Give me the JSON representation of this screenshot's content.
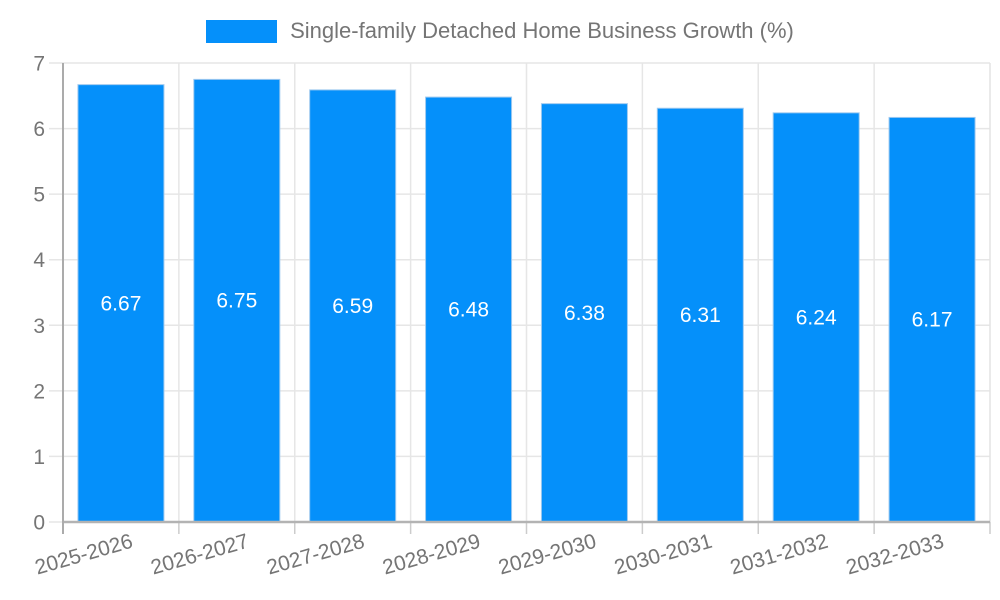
{
  "chart_data": {
    "type": "bar",
    "title": "",
    "legend": {
      "label": "Single-family Detached Home Business Growth (%)",
      "position": "top-center"
    },
    "categories": [
      "2025-2026",
      "2026-2027",
      "2027-2028",
      "2028-2029",
      "2029-2030",
      "2030-2031",
      "2031-2032",
      "2032-2033"
    ],
    "values": [
      6.67,
      6.75,
      6.59,
      6.48,
      6.38,
      6.31,
      6.24,
      6.17
    ],
    "value_labels": [
      "6.67",
      "6.75",
      "6.59",
      "6.48",
      "6.38",
      "6.31",
      "6.24",
      "6.17"
    ],
    "xlabel": "",
    "ylabel": "",
    "ylim": [
      0,
      7
    ],
    "yticks": [
      0,
      1,
      2,
      3,
      4,
      5,
      6,
      7
    ],
    "grid": true,
    "x_label_rotation_deg": -16,
    "colors": {
      "bar": "#0590fa",
      "bar_edge": "#9ec9ef",
      "bar_label_text": "#ffffff",
      "axis_text": "#757575",
      "gridline": "#e6e6e6",
      "plot_border": "#e3e3e3",
      "x_axis_line": "#b3b3b3",
      "y_axis_line": "#ababab",
      "tick_mark": "#cccccc",
      "background": "#ffffff"
    }
  }
}
